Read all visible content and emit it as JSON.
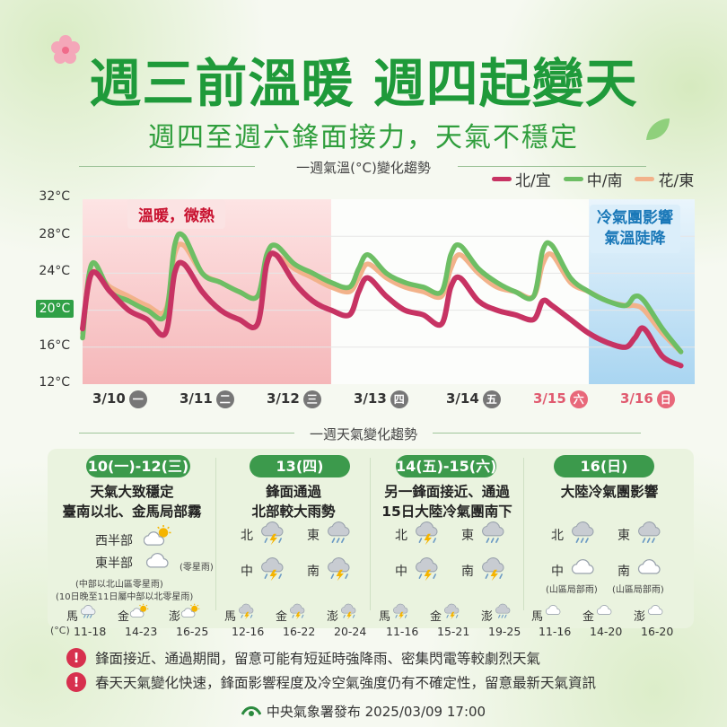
{
  "header": {
    "title": "週三前溫暖 週四起變天",
    "subtitle": "週四至週六鋒面接力，天氣不穩定"
  },
  "chart_section_title": "一週氣溫(°C)變化趨勢",
  "weather_section_title": "一週天氣變化趨勢",
  "chart_data": {
    "type": "line",
    "title": "一週氣溫(°C)變化趨勢",
    "ylabel": "°C",
    "ylim": [
      12,
      32
    ],
    "yticks": [
      "32°C",
      "28°C",
      "24°C",
      "20°C",
      "16°C",
      "12°C"
    ],
    "categories": [
      {
        "date": "3/10",
        "wd": "一"
      },
      {
        "date": "3/11",
        "wd": "二"
      },
      {
        "date": "3/12",
        "wd": "三"
      },
      {
        "date": "3/13",
        "wd": "四"
      },
      {
        "date": "3/14",
        "wd": "五"
      },
      {
        "date": "3/15",
        "wd": "六"
      },
      {
        "date": "3/16",
        "wd": "日"
      }
    ],
    "x": [
      0,
      0.1,
      0.3,
      0.5,
      0.7,
      0.9,
      1,
      1.1,
      1.3,
      1.5,
      1.7,
      1.9,
      2,
      2.1,
      2.3,
      2.5,
      2.7,
      2.9,
      3,
      3.1,
      3.3,
      3.5,
      3.7,
      3.9,
      4,
      4.1,
      4.3,
      4.5,
      4.7,
      4.9,
      5,
      5.1,
      5.3,
      5.5,
      5.7,
      5.9,
      6,
      6.1,
      6.3,
      6.5
    ],
    "series": [
      {
        "name": "北/宜",
        "color": "#c73363",
        "values": [
          18,
          24,
          22,
          20,
          19,
          17.5,
          24,
          25,
          22,
          20,
          19,
          18.5,
          25,
          26,
          23,
          21,
          20,
          19.5,
          22,
          23.5,
          21.5,
          20,
          19.5,
          18.5,
          22.5,
          23.5,
          21,
          20,
          19.5,
          19,
          21,
          20.5,
          19,
          17.5,
          16.5,
          16,
          17,
          18,
          15,
          14
        ]
      },
      {
        "name": "中/南",
        "color": "#6dbe64",
        "values": [
          17,
          25,
          22,
          21,
          20,
          19.5,
          27,
          28,
          24,
          23,
          22,
          21.5,
          26,
          27,
          25,
          24,
          23,
          22.5,
          24.5,
          26,
          24,
          23,
          22.5,
          22,
          26,
          27,
          24.5,
          23,
          22,
          21.5,
          26.5,
          27,
          23.5,
          22,
          21,
          20.5,
          21.5,
          21,
          18,
          15.5
        ]
      },
      {
        "name": "花/東",
        "color": "#f2b28a",
        "values": [
          17.5,
          24,
          22.5,
          21.5,
          20.5,
          20,
          26,
          27,
          24,
          23,
          22,
          21.5,
          25.5,
          26,
          24.5,
          23.5,
          22.5,
          22,
          23.5,
          25,
          23.5,
          22.5,
          22,
          21.5,
          24.5,
          26,
          24,
          22.5,
          22,
          21.5,
          25,
          26,
          23,
          22,
          21,
          20.5,
          20.5,
          20,
          17.5,
          15.5
        ]
      }
    ],
    "annotations": [
      {
        "text": "溫暖，微熱",
        "color": "#c8102e"
      },
      {
        "text": "冷氣團影響\n氣溫陡降",
        "color": "#1a78b8"
      }
    ]
  },
  "tags": {
    "warm": "溫暖，微熱",
    "cold1": "冷氣團影響",
    "cold2": "氣溫陡降"
  },
  "periods": [
    {
      "label": "10(一)-12(三)",
      "head1": "天氣大致穩定",
      "head2": "臺南以北、金馬局部霧",
      "rows": [
        {
          "name": "西半部",
          "icon": "partly-sunny-icon"
        },
        {
          "name": "東半部",
          "icon": "cloud-icon",
          "note": "(零星雨)"
        }
      ],
      "notes": [
        "(中部以北山區零星雨)",
        "(10日晚至11日屬中部以北零星雨)"
      ],
      "unit": "(°C)",
      "islands": [
        {
          "name": "馬",
          "range": "11-18",
          "icon": "cloud-rain-icon"
        },
        {
          "name": "金",
          "range": "14-23",
          "icon": "partly-sunny-icon"
        },
        {
          "name": "澎",
          "range": "16-25",
          "icon": "partly-sunny-icon"
        }
      ]
    },
    {
      "label": "13(四)",
      "head1": "鋒面通過",
      "head2": "北部較大雨勢",
      "regions": [
        {
          "name": "北",
          "icon": "thunderstorm-icon"
        },
        {
          "name": "東",
          "icon": "rain-icon"
        },
        {
          "name": "中",
          "icon": "thunderstorm-icon"
        },
        {
          "name": "南",
          "icon": "thunderstorm-icon"
        }
      ],
      "islands": [
        {
          "name": "馬",
          "range": "12-16",
          "icon": "thunderstorm-icon"
        },
        {
          "name": "金",
          "range": "16-22",
          "icon": "thunderstorm-icon"
        },
        {
          "name": "澎",
          "range": "20-24",
          "icon": "thunderstorm-icon"
        }
      ]
    },
    {
      "label": "14(五)-15(六)",
      "head1": "另一鋒面接近、通過",
      "head2": "15日大陸冷氣團南下",
      "regions": [
        {
          "name": "北",
          "icon": "thunderstorm-icon"
        },
        {
          "name": "東",
          "icon": "rain-icon"
        },
        {
          "name": "中",
          "icon": "thunderstorm-icon"
        },
        {
          "name": "南",
          "icon": "thunderstorm-icon"
        }
      ],
      "islands": [
        {
          "name": "馬",
          "range": "11-16",
          "icon": "thunderstorm-icon"
        },
        {
          "name": "金",
          "range": "15-21",
          "icon": "thunderstorm-icon"
        },
        {
          "name": "澎",
          "range": "19-25",
          "icon": "rain-icon"
        }
      ]
    },
    {
      "label": "16(日)",
      "head1": "大陸冷氣團影響",
      "head2": "",
      "regions": [
        {
          "name": "北",
          "icon": "rain-icon"
        },
        {
          "name": "東",
          "icon": "rain-icon"
        },
        {
          "name": "中",
          "icon": "cloud-icon",
          "note": "(山區局部雨)"
        },
        {
          "name": "南",
          "icon": "cloud-icon",
          "note": "(山區局部雨)"
        }
      ],
      "islands": [
        {
          "name": "馬",
          "range": "11-16",
          "icon": "cloud-icon"
        },
        {
          "name": "金",
          "range": "14-20",
          "icon": "cloud-icon"
        },
        {
          "name": "澎",
          "range": "16-20",
          "icon": "cloud-icon"
        }
      ]
    }
  ],
  "notes": [
    "鋒面接近、通過期間，留意可能有短延時強降雨、密集閃電等較劇烈天氣",
    "春天天氣變化快速，鋒面影響程度及冷空氣強度仍有不確定性，留意最新天氣資訊"
  ],
  "footer": "中央氣象署發布 2025/03/09 17:00",
  "colors": {
    "brand": "#1f9a3a",
    "pill": "#3c9a4c",
    "warm_bg": "#f8c6c6",
    "cold_bg": "#cfe6f6"
  }
}
